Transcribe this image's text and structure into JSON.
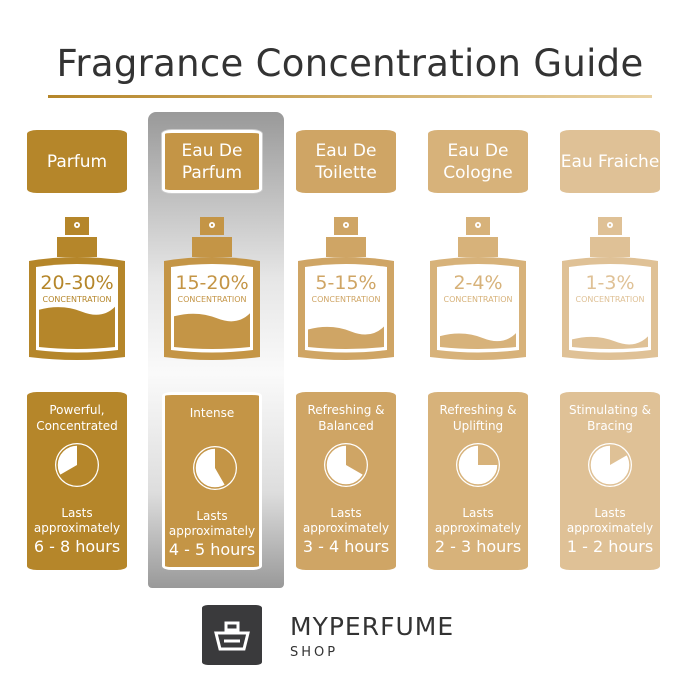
{
  "title": "Fragrance Concentration Guide",
  "concentration_label": "CONCENTRATION",
  "lasts_label": "Lasts approximately",
  "highlighted": "Eau De Parfum",
  "types": [
    {
      "name": "Parfum",
      "percent": "20-30%",
      "description": "Powerful, Concentrated",
      "hours": "6 - 8 hours",
      "max_hours": 8,
      "fill_level": 0.33,
      "color": "#b5862a"
    },
    {
      "name": "Eau De Parfum",
      "percent": "15-20%",
      "description": "Intense",
      "hours": "4 - 5 hours",
      "max_hours": 5,
      "fill_level": 0.27,
      "color": "#c49546"
    },
    {
      "name": "Eau De Toilette",
      "percent": "5-15%",
      "description": "Refreshing & Balanced",
      "hours": "3 - 4 hours",
      "max_hours": 4,
      "fill_level": 0.15,
      "color": "#cfa565"
    },
    {
      "name": "Eau De Cologne",
      "percent": "2-4%",
      "description": "Refreshing & Uplifting",
      "hours": "2 - 3 hours",
      "max_hours": 3,
      "fill_level": 0.09,
      "color": "#d7b27a"
    },
    {
      "name": "Eau Fraiche",
      "percent": "1-3%",
      "description": "Stimulating & Bracing",
      "hours": "1 - 2 hours",
      "max_hours": 2,
      "fill_level": 0.06,
      "color": "#dfc196"
    }
  ],
  "logo": {
    "brand": "MYPERFUME",
    "sub": "SHOP"
  }
}
